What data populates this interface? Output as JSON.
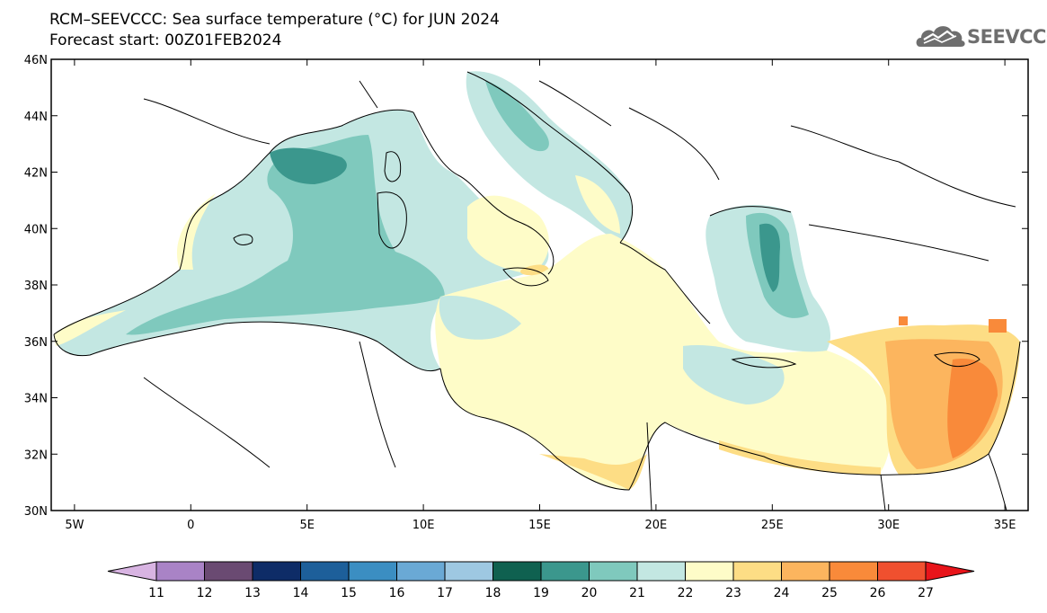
{
  "title": {
    "line1": "RCM–SEEVCCC: Sea surface temperature (°C) for JUN 2024",
    "line2": "Forecast start: 00Z01FEB2024"
  },
  "logo": {
    "text": "SEEVCCC",
    "icon": "cloud-icon",
    "color": "#6e6e6e"
  },
  "map": {
    "lat_range": [
      30,
      46
    ],
    "lon_range": [
      -6,
      36
    ],
    "y_ticks": [
      "46N",
      "44N",
      "42N",
      "40N",
      "38N",
      "36N",
      "34N",
      "32N",
      "30N"
    ],
    "x_ticks": [
      "5W",
      "0",
      "5E",
      "10E",
      "15E",
      "20E",
      "25E",
      "30E",
      "35E"
    ],
    "land_color": "#ffffff",
    "coastline_color": "#000000"
  },
  "colorbar": {
    "labels": [
      "11",
      "12",
      "13",
      "14",
      "15",
      "16",
      "17",
      "18",
      "19",
      "20",
      "21",
      "22",
      "23",
      "24",
      "25",
      "26",
      "27"
    ],
    "under_color": "#d8b4e2",
    "over_color": "#e8141a",
    "colors": [
      "#a983c6",
      "#6a4a72",
      "#0e2c67",
      "#1d5f9a",
      "#3b8ec2",
      "#6aa9d5",
      "#9ec8e2",
      "#0f6150",
      "#3b978d",
      "#7fc9bd",
      "#c3e7e2",
      "#fefcc8",
      "#fddd85",
      "#fcb55e",
      "#f98a3a",
      "#f0502f"
    ]
  }
}
